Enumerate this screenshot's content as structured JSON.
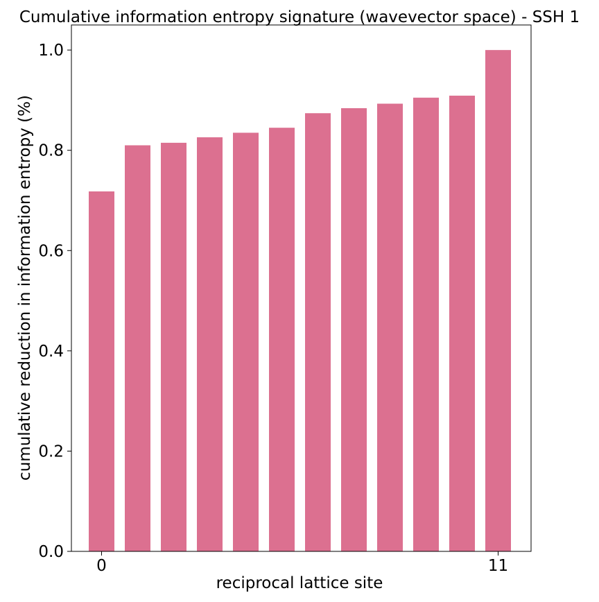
{
  "chart_data": {
    "type": "bar",
    "title": "Cumulative information entropy signature (wavevector space) - SSH 1",
    "xlabel": "reciprocal lattice site",
    "ylabel": "cumulative reduction in information entropy (%)",
    "categories": [
      0,
      1,
      2,
      3,
      4,
      5,
      6,
      7,
      8,
      9,
      10,
      11
    ],
    "x_tick_labels": [
      "0",
      "11"
    ],
    "values": [
      0.718,
      0.81,
      0.815,
      0.826,
      0.835,
      0.845,
      0.874,
      0.884,
      0.893,
      0.905,
      0.909,
      1.0
    ],
    "ylim": [
      0.0,
      1.05
    ],
    "y_ticks": [
      0.0,
      0.2,
      0.4,
      0.6,
      0.8,
      1.0
    ],
    "y_tick_labels": [
      "0.0",
      "0.2",
      "0.4",
      "0.6",
      "0.8",
      "1.0"
    ],
    "grid": false,
    "bar_color": "#dc7090"
  }
}
